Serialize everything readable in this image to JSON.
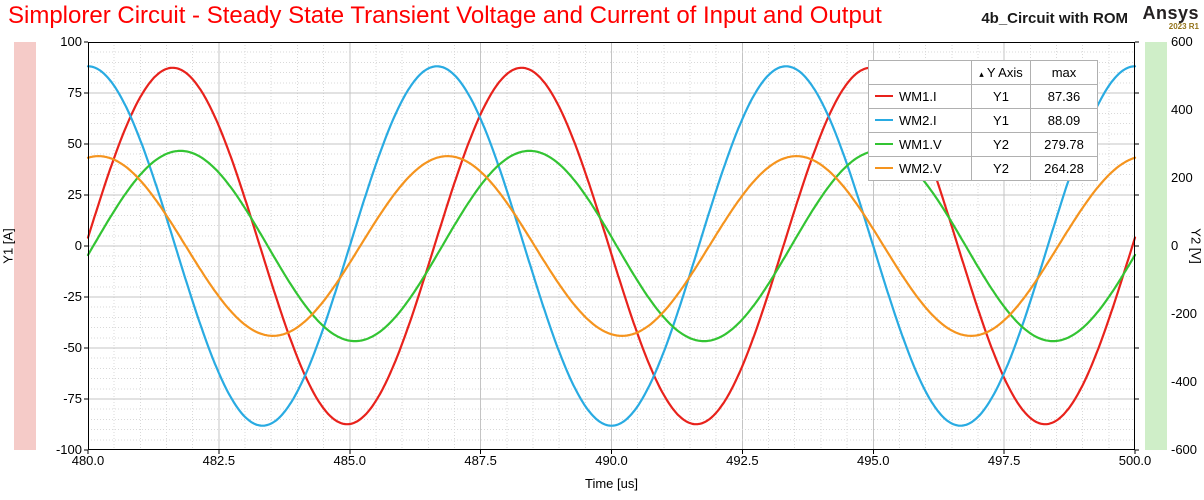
{
  "header": {
    "design_name": "4b_Circuit with ROM",
    "logo": {
      "brand": "Ansys",
      "version": "2023 R1"
    },
    "title_color": "#ff0000"
  },
  "chart_data": {
    "type": "line",
    "title": "Simplorer Circuit - Steady State Transient Voltage and Current of Input and Output",
    "grid": "major solid, minor dotted",
    "x_axis": {
      "label": "Time [us]",
      "min": 480,
      "max": 500,
      "major_step": 2.5,
      "minor_step": 0.5,
      "tick_labels": [
        "480.0",
        "482.5",
        "485.0",
        "487.5",
        "490.0",
        "492.5",
        "495.0",
        "497.5",
        "500.0"
      ]
    },
    "y1_axis": {
      "label": "Y1 [A]",
      "unit": "A",
      "min": -100,
      "max": 100,
      "major_step": 25,
      "minor_step": 5,
      "band_color": "#f5cbc8",
      "tick_labels": [
        "100",
        "75",
        "50",
        "25",
        "0",
        "-25",
        "-50",
        "-75",
        "-100"
      ]
    },
    "y2_axis": {
      "label": "Y2 [V]",
      "unit": "V",
      "min": -600,
      "max": 600,
      "major_step": 200,
      "band_color": "#cfeec8",
      "tick_labels": [
        "600",
        "400",
        "200",
        "0",
        "-200",
        "-400",
        "-600"
      ]
    },
    "series": [
      {
        "name": "WM1.I",
        "y_axis": "Y1",
        "max": 87.36,
        "color": "#e8221c",
        "waveform": {
          "shape": "sine",
          "amplitude": 87.36,
          "period_us": 6.66667,
          "t_rising_zero_us": 479.95
        }
      },
      {
        "name": "WM2.I",
        "y_axis": "Y1",
        "max": 88.09,
        "color": "#29abe2",
        "waveform": {
          "shape": "sine",
          "amplitude": 88.09,
          "period_us": 6.66667,
          "t_rising_zero_us": 485.0
        }
      },
      {
        "name": "WM1.V",
        "y_axis": "Y2",
        "max": 279.78,
        "color": "#33c433",
        "waveform": {
          "shape": "sine",
          "amplitude": 279.78,
          "period_us": 6.66667,
          "t_rising_zero_us": 480.1
        }
      },
      {
        "name": "WM2.V",
        "y_axis": "Y2",
        "max": 264.28,
        "color": "#f5941e",
        "waveform": {
          "shape": "sine",
          "amplitude": 264.28,
          "period_us": 6.66667,
          "t_rising_zero_us": 485.2
        }
      }
    ],
    "legend": {
      "headers": {
        "name": "",
        "y_axis": "Y Axis",
        "max": "max"
      },
      "sort_glyph": "▴",
      "position": "top-right"
    }
  }
}
